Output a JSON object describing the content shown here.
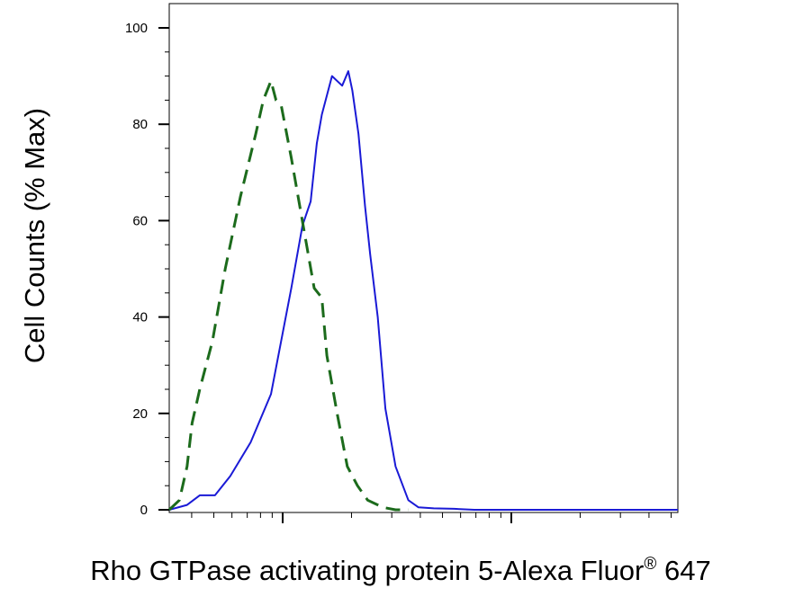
{
  "chart_data": {
    "type": "line",
    "title": "",
    "xlabel": "Rho GTPase activating protein 5-Alexa Fluor",
    "xlabel_mark": "®",
    "xlabel_suffix": " 647",
    "ylabel": "Cell Counts (% Max)",
    "ylim": [
      0,
      105
    ],
    "yticks": [
      0,
      20,
      40,
      60,
      80,
      100
    ],
    "x_scale": "log (unlabeled, arbitrary fluorescence)",
    "xlim": [
      0,
      1000
    ],
    "grid": false,
    "series": [
      {
        "color": "#1a1ad6",
        "style": "solid",
        "x": [
          0,
          35,
          60,
          90,
          120,
          160,
          200,
          240,
          262,
          278,
          290,
          300,
          320,
          340,
          352,
          360,
          372,
          385,
          395,
          410,
          425,
          445,
          470,
          490,
          520,
          560,
          600,
          700,
          800,
          900,
          1000
        ],
        "y": [
          0,
          1,
          3,
          3,
          7,
          14,
          24,
          46,
          59,
          64,
          76,
          82,
          90,
          88,
          91,
          87,
          78,
          63,
          53,
          40,
          21,
          9,
          2,
          0.5,
          0.3,
          0.2,
          0,
          0,
          0,
          0,
          0
        ]
      },
      {
        "color": "#1c6b1c",
        "style": "dashed",
        "x": [
          0,
          20,
          35,
          45,
          60,
          85,
          110,
          140,
          170,
          185,
          200,
          210,
          220,
          240,
          265,
          285,
          300,
          310,
          330,
          350,
          370,
          390,
          420,
          445,
          470
        ],
        "y": [
          0,
          2,
          9,
          18,
          25,
          35,
          50,
          65,
          78,
          85,
          89,
          85,
          84,
          73,
          58,
          46,
          44,
          32,
          20,
          9,
          5,
          2,
          0.5,
          0,
          0
        ]
      }
    ]
  }
}
